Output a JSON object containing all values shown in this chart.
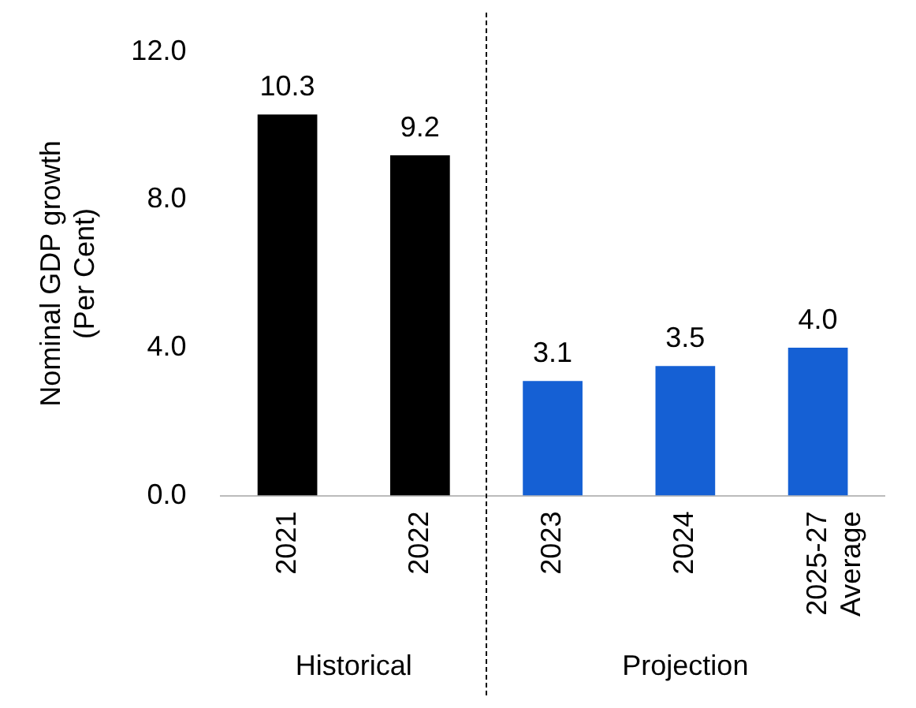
{
  "chart_data": {
    "type": "bar",
    "ylabel": "Nominal GDP growth (Per Cent)",
    "categories": [
      "2021",
      "2022",
      "2023",
      "2024",
      "2025-27 Average"
    ],
    "values": [
      10.3,
      9.2,
      3.1,
      3.5,
      4.0
    ],
    "colors": [
      "#000000",
      "#000000",
      "#1560d4",
      "#1560d4",
      "#1560d4"
    ],
    "ylim": [
      0,
      12
    ],
    "yticks": [
      {
        "value": 0,
        "label": "0.0"
      },
      {
        "value": 4,
        "label": "4.0"
      },
      {
        "value": 8,
        "label": "8.0"
      },
      {
        "value": 12,
        "label": "12.0"
      }
    ],
    "value_labels": [
      "10.3",
      "9.2",
      "3.1",
      "3.5",
      "4.0"
    ],
    "grid": false,
    "legend": false,
    "annotations": [
      "Historical",
      "Projection"
    ]
  }
}
